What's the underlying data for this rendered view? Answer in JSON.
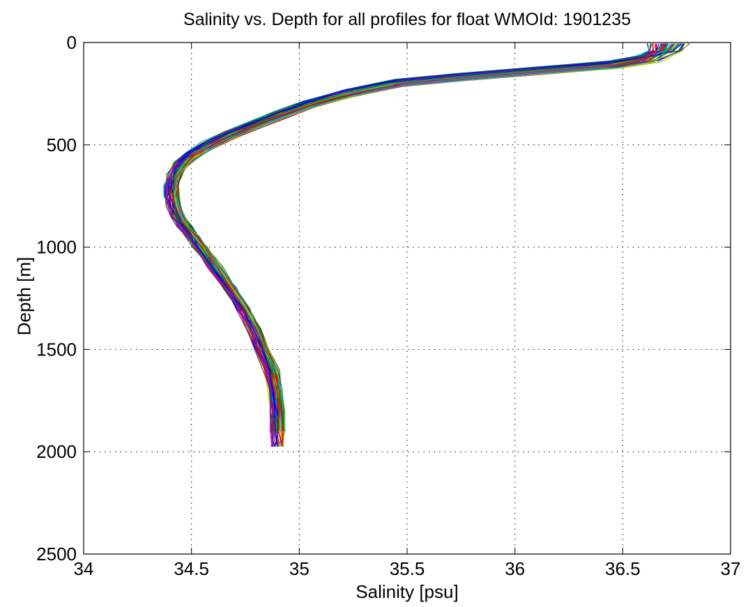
{
  "chart_data": {
    "type": "line",
    "title": "Salinity vs. Depth for all profiles for float WMOId: 1901235",
    "xlabel": "Salinity [psu]",
    "ylabel": "Depth [m]",
    "xlim": [
      34,
      37
    ],
    "ylim": [
      0,
      2500
    ],
    "y_reversed": true,
    "grid": true,
    "grid_style": "dotted",
    "xticks": [
      34,
      34.5,
      35,
      35.5,
      36,
      36.5,
      37
    ],
    "xtick_labels": [
      "34",
      "34.5",
      "35",
      "35.5",
      "36",
      "36.5",
      "37"
    ],
    "yticks": [
      0,
      500,
      1000,
      1500,
      2000,
      2500
    ],
    "ytick_labels": [
      "0",
      "500",
      "1000",
      "1500",
      "2000",
      "2500"
    ],
    "profile_count_approx": 60,
    "mean_profile": {
      "depth": [
        5,
        40,
        80,
        110,
        140,
        170,
        200,
        250,
        300,
        350,
        400,
        450,
        500,
        550,
        600,
        650,
        700,
        750,
        800,
        850,
        900,
        950,
        1000,
        1100,
        1200,
        1300,
        1400,
        1500,
        1600,
        1700,
        1800,
        1900,
        1975
      ],
      "salinity": [
        36.72,
        36.7,
        36.62,
        36.45,
        36.1,
        35.75,
        35.45,
        35.22,
        35.05,
        34.92,
        34.8,
        34.68,
        34.58,
        34.5,
        34.45,
        34.42,
        34.41,
        34.41,
        34.42,
        34.44,
        34.47,
        34.51,
        34.54,
        34.61,
        34.68,
        34.74,
        34.79,
        34.83,
        34.87,
        34.89,
        34.9,
        34.9,
        34.9
      ]
    },
    "series_colors": [
      "#0000ff",
      "#008000",
      "#ff0000",
      "#00bfbf",
      "#bf00bf",
      "#bfbf00",
      "#404040"
    ]
  }
}
